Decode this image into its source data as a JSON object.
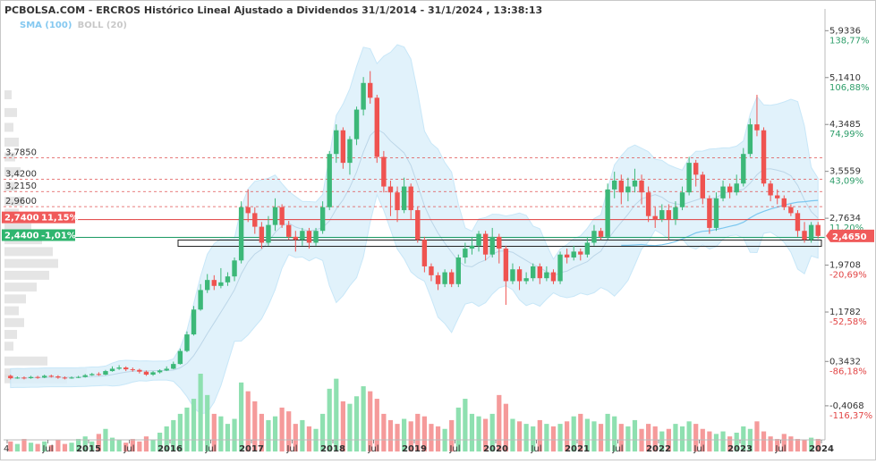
{
  "title": "PCBOLSA.COM - ERCROS Histórico Lineal Ajustado a Dividendos 31/1/2014 - 31/1/2024 , 13:38:13",
  "legend": {
    "sma": "SMA (100)",
    "boll": "BOLL (20)"
  },
  "colors": {
    "up": "#3cb878",
    "down": "#ef5350",
    "volume_up": "#8ee0b0",
    "volume_down": "#f59a9a",
    "band_fill": "#dcf0fb",
    "band_line": "#bfe3f7",
    "sma": "#7cc7ef",
    "mid": "#bcd6e8",
    "hist": "#dedede",
    "grid_dash": "#e05050",
    "axis_text": "#333333",
    "pct_green": "#2e9e6a",
    "pct_red": "#e24545"
  },
  "chart_data": {
    "type": "candlestick",
    "right_axis": [
      {
        "price": "5,9336",
        "pct": "138,77%",
        "color": "green"
      },
      {
        "price": "5,1410",
        "pct": "106,88%",
        "color": "green"
      },
      {
        "price": "4,3485",
        "pct": "74,99%",
        "color": "green"
      },
      {
        "price": "3,5559",
        "pct": "43,09%",
        "color": "green"
      },
      {
        "price": "2,7634",
        "pct": "11,20%",
        "color": "green"
      },
      {
        "price": "1,9708",
        "pct": "-20,69%",
        "color": "red"
      },
      {
        "price": "1,1782",
        "pct": "-52,58%",
        "color": "red"
      },
      {
        "price": "0,3432",
        "pct": "-86,18%",
        "color": "red"
      },
      {
        "price": "-0,4068",
        "pct": "-116,37%",
        "color": "red"
      }
    ],
    "y_range": [
      -0.65,
      6.15
    ],
    "x_axis": [
      {
        "label": "4",
        "t": 0.0,
        "bold": false
      },
      {
        "label": "Jul",
        "t": 0.5,
        "bold": false
      },
      {
        "label": "2015",
        "t": 1.0,
        "bold": true
      },
      {
        "label": "Jul",
        "t": 1.5,
        "bold": false
      },
      {
        "label": "2016",
        "t": 2.0,
        "bold": true
      },
      {
        "label": "Jul",
        "t": 2.5,
        "bold": false
      },
      {
        "label": "2017",
        "t": 3.0,
        "bold": true
      },
      {
        "label": "Jul",
        "t": 3.5,
        "bold": false
      },
      {
        "label": "2018",
        "t": 4.0,
        "bold": true
      },
      {
        "label": "Jul",
        "t": 4.5,
        "bold": false
      },
      {
        "label": "2019",
        "t": 5.0,
        "bold": true
      },
      {
        "label": "Jul",
        "t": 5.5,
        "bold": false
      },
      {
        "label": "2020",
        "t": 6.0,
        "bold": true
      },
      {
        "label": "Jul",
        "t": 6.5,
        "bold": false
      },
      {
        "label": "2021",
        "t": 7.0,
        "bold": true
      },
      {
        "label": "Jul",
        "t": 7.5,
        "bold": false
      },
      {
        "label": "2022",
        "t": 8.0,
        "bold": true
      },
      {
        "label": "Jul",
        "t": 8.5,
        "bold": false
      },
      {
        "label": "2023",
        "t": 9.0,
        "bold": true
      },
      {
        "label": "Jul",
        "t": 9.5,
        "bold": false
      },
      {
        "label": "2024",
        "t": 10.0,
        "bold": true
      }
    ],
    "levels": [
      {
        "price": 3.785,
        "label": "3,7850",
        "style": "dashed"
      },
      {
        "price": 3.42,
        "label": "3,4200",
        "style": "dashed"
      },
      {
        "price": 3.215,
        "label": "3,2150",
        "style": "dashed"
      },
      {
        "price": 2.96,
        "label": "2,9600",
        "style": "dashed"
      },
      {
        "price": 2.74,
        "label": "2,7400",
        "pct": "11,15%",
        "style": "solid-red"
      },
      {
        "price": 2.44,
        "label": "2,4400",
        "pct": "-1,01%",
        "style": "solid-green"
      }
    ],
    "last_price": {
      "value": 2.465,
      "label": "2,4650"
    },
    "candles": [
      [
        0.1,
        0.06,
        0.12,
        0.04
      ],
      [
        0.06,
        0.07,
        0.09,
        0.05
      ],
      [
        0.07,
        0.06,
        0.09,
        0.04
      ],
      [
        0.06,
        0.08,
        0.1,
        0.05
      ],
      [
        0.08,
        0.07,
        0.1,
        0.05
      ],
      [
        0.07,
        0.1,
        0.12,
        0.06
      ],
      [
        0.1,
        0.09,
        0.12,
        0.07
      ],
      [
        0.09,
        0.07,
        0.11,
        0.05
      ],
      [
        0.07,
        0.06,
        0.09,
        0.04
      ],
      [
        0.06,
        0.07,
        0.09,
        0.05
      ],
      [
        0.07,
        0.08,
        0.1,
        0.06
      ],
      [
        0.08,
        0.11,
        0.13,
        0.07
      ],
      [
        0.11,
        0.13,
        0.15,
        0.1
      ],
      [
        0.13,
        0.12,
        0.16,
        0.1
      ],
      [
        0.12,
        0.18,
        0.2,
        0.11
      ],
      [
        0.18,
        0.22,
        0.26,
        0.17
      ],
      [
        0.22,
        0.24,
        0.28,
        0.2
      ],
      [
        0.24,
        0.21,
        0.26,
        0.18
      ],
      [
        0.21,
        0.2,
        0.24,
        0.17
      ],
      [
        0.2,
        0.17,
        0.22,
        0.14
      ],
      [
        0.17,
        0.12,
        0.19,
        0.1
      ],
      [
        0.12,
        0.16,
        0.18,
        0.1
      ],
      [
        0.16,
        0.19,
        0.21,
        0.14
      ],
      [
        0.19,
        0.22,
        0.26,
        0.18
      ],
      [
        0.22,
        0.3,
        0.34,
        0.21
      ],
      [
        0.3,
        0.52,
        0.56,
        0.29
      ],
      [
        0.52,
        0.8,
        0.85,
        0.5
      ],
      [
        0.8,
        1.22,
        1.28,
        0.78
      ],
      [
        1.22,
        1.55,
        1.65,
        1.2
      ],
      [
        1.55,
        1.72,
        1.82,
        1.5
      ],
      [
        1.72,
        1.62,
        1.8,
        1.55
      ],
      [
        1.62,
        1.68,
        1.92,
        1.58
      ],
      [
        1.68,
        1.78,
        1.85,
        1.62
      ],
      [
        1.78,
        2.05,
        2.1,
        1.7
      ],
      [
        2.05,
        2.95,
        3.05,
        2.0
      ],
      [
        2.95,
        2.85,
        3.25,
        2.7
      ],
      [
        2.85,
        2.62,
        2.95,
        2.5
      ],
      [
        2.62,
        2.35,
        2.7,
        2.25
      ],
      [
        2.35,
        2.65,
        2.8,
        2.3
      ],
      [
        2.65,
        2.95,
        3.1,
        2.55
      ],
      [
        2.95,
        2.65,
        3.0,
        2.6
      ],
      [
        2.65,
        2.45,
        2.72,
        2.4
      ],
      [
        2.45,
        2.4,
        2.55,
        2.2
      ],
      [
        2.4,
        2.55,
        2.6,
        2.3
      ],
      [
        2.55,
        2.35,
        2.6,
        2.25
      ],
      [
        2.35,
        2.55,
        2.6,
        2.3
      ],
      [
        2.55,
        2.95,
        3.05,
        2.5
      ],
      [
        2.95,
        3.85,
        3.9,
        2.9
      ],
      [
        3.85,
        4.25,
        4.35,
        3.7
      ],
      [
        4.25,
        3.7,
        4.3,
        3.6
      ],
      [
        3.7,
        4.1,
        4.15,
        3.5
      ],
      [
        4.1,
        4.6,
        4.65,
        4.0
      ],
      [
        4.6,
        5.05,
        5.15,
        4.5
      ],
      [
        5.05,
        4.8,
        5.25,
        4.7
      ],
      [
        4.8,
        3.8,
        4.85,
        3.7
      ],
      [
        3.8,
        3.3,
        3.9,
        3.2
      ],
      [
        3.3,
        3.2,
        3.4,
        2.8
      ],
      [
        3.2,
        2.9,
        3.3,
        2.7
      ],
      [
        2.9,
        3.3,
        3.45,
        2.85
      ],
      [
        3.3,
        2.9,
        3.35,
        2.75
      ],
      [
        2.9,
        2.4,
        2.95,
        2.35
      ],
      [
        2.4,
        1.95,
        2.45,
        1.85
      ],
      [
        1.95,
        1.8,
        2.0,
        1.7
      ],
      [
        1.8,
        1.65,
        1.85,
        1.55
      ],
      [
        1.65,
        1.85,
        1.9,
        1.6
      ],
      [
        1.85,
        1.65,
        1.9,
        1.6
      ],
      [
        1.65,
        2.1,
        2.15,
        1.6
      ],
      [
        2.1,
        2.25,
        2.35,
        2.0
      ],
      [
        2.25,
        2.3,
        2.45,
        2.15
      ],
      [
        2.3,
        2.5,
        2.55,
        2.2
      ],
      [
        2.5,
        2.15,
        2.55,
        2.05
      ],
      [
        2.15,
        2.45,
        2.6,
        2.1
      ],
      [
        2.45,
        2.25,
        2.5,
        2.0
      ],
      [
        2.25,
        1.7,
        2.3,
        1.3
      ],
      [
        1.7,
        1.9,
        2.0,
        1.65
      ],
      [
        1.9,
        1.7,
        1.95,
        1.55
      ],
      [
        1.7,
        1.75,
        1.85,
        1.65
      ],
      [
        1.75,
        1.95,
        2.0,
        1.7
      ],
      [
        1.95,
        1.75,
        2.0,
        1.65
      ],
      [
        1.75,
        1.85,
        1.95,
        1.7
      ],
      [
        1.85,
        1.7,
        1.9,
        1.65
      ],
      [
        1.7,
        2.15,
        2.2,
        1.65
      ],
      [
        2.15,
        2.1,
        2.25,
        2.0
      ],
      [
        2.1,
        2.2,
        2.3,
        2.05
      ],
      [
        2.2,
        2.15,
        2.25,
        2.05
      ],
      [
        2.15,
        2.35,
        2.45,
        2.1
      ],
      [
        2.35,
        2.55,
        2.65,
        2.3
      ],
      [
        2.55,
        2.45,
        2.6,
        2.4
      ],
      [
        2.45,
        3.25,
        3.35,
        2.4
      ],
      [
        3.25,
        3.4,
        3.55,
        3.1
      ],
      [
        3.4,
        3.2,
        3.5,
        3.0
      ],
      [
        3.2,
        3.3,
        3.45,
        3.05
      ],
      [
        3.3,
        3.4,
        3.6,
        3.2
      ],
      [
        3.4,
        3.2,
        3.5,
        3.0
      ],
      [
        3.2,
        2.8,
        3.3,
        2.7
      ],
      [
        2.8,
        2.75,
        2.95,
        2.6
      ],
      [
        2.75,
        2.9,
        3.0,
        2.7
      ],
      [
        2.9,
        2.75,
        3.0,
        2.4
      ],
      [
        2.75,
        2.95,
        3.05,
        2.65
      ],
      [
        2.95,
        3.2,
        3.3,
        2.9
      ],
      [
        3.2,
        3.7,
        3.8,
        3.15
      ],
      [
        3.7,
        3.5,
        3.75,
        3.3
      ],
      [
        3.5,
        3.1,
        3.55,
        3.0
      ],
      [
        3.1,
        2.6,
        3.15,
        2.5
      ],
      [
        2.6,
        3.1,
        3.2,
        2.55
      ],
      [
        3.1,
        3.3,
        3.4,
        3.05
      ],
      [
        3.3,
        3.2,
        3.35,
        3.1
      ],
      [
        3.2,
        3.35,
        3.5,
        3.15
      ],
      [
        3.35,
        3.85,
        3.95,
        3.3
      ],
      [
        3.85,
        4.35,
        4.45,
        3.8
      ],
      [
        4.35,
        4.25,
        4.85,
        4.15
      ],
      [
        4.25,
        3.35,
        4.3,
        3.3
      ],
      [
        3.35,
        3.15,
        3.4,
        3.05
      ],
      [
        3.15,
        3.1,
        3.25,
        3.0
      ],
      [
        3.1,
        2.95,
        3.15,
        2.9
      ],
      [
        2.95,
        2.85,
        3.0,
        2.8
      ],
      [
        2.85,
        2.55,
        2.9,
        2.45
      ],
      [
        2.55,
        2.4,
        2.7,
        2.35
      ],
      [
        2.4,
        2.65,
        2.7,
        2.35
      ],
      [
        2.65,
        2.465,
        2.7,
        2.42
      ]
    ],
    "volumes": [
      0.08,
      0.06,
      0.1,
      0.07,
      0.06,
      0.08,
      0.05,
      0.09,
      0.06,
      0.07,
      0.1,
      0.12,
      0.08,
      0.14,
      0.18,
      0.11,
      0.09,
      0.07,
      0.1,
      0.08,
      0.12,
      0.09,
      0.15,
      0.2,
      0.25,
      0.3,
      0.35,
      0.42,
      0.62,
      0.45,
      0.3,
      0.28,
      0.22,
      0.26,
      0.55,
      0.48,
      0.4,
      0.3,
      0.25,
      0.28,
      0.35,
      0.32,
      0.22,
      0.25,
      0.2,
      0.18,
      0.3,
      0.5,
      0.58,
      0.4,
      0.38,
      0.44,
      0.52,
      0.48,
      0.42,
      0.3,
      0.25,
      0.22,
      0.26,
      0.24,
      0.3,
      0.28,
      0.22,
      0.2,
      0.18,
      0.25,
      0.35,
      0.42,
      0.3,
      0.28,
      0.26,
      0.3,
      0.45,
      0.38,
      0.26,
      0.24,
      0.22,
      0.2,
      0.25,
      0.22,
      0.2,
      0.22,
      0.24,
      0.28,
      0.3,
      0.26,
      0.24,
      0.22,
      0.3,
      0.28,
      0.22,
      0.2,
      0.25,
      0.18,
      0.22,
      0.2,
      0.16,
      0.18,
      0.22,
      0.2,
      0.24,
      0.22,
      0.18,
      0.16,
      0.14,
      0.16,
      0.12,
      0.15,
      0.2,
      0.18,
      0.24,
      0.16,
      0.12,
      0.1,
      0.14,
      0.12,
      0.1,
      0.09,
      0.11,
      0.1
    ]
  }
}
